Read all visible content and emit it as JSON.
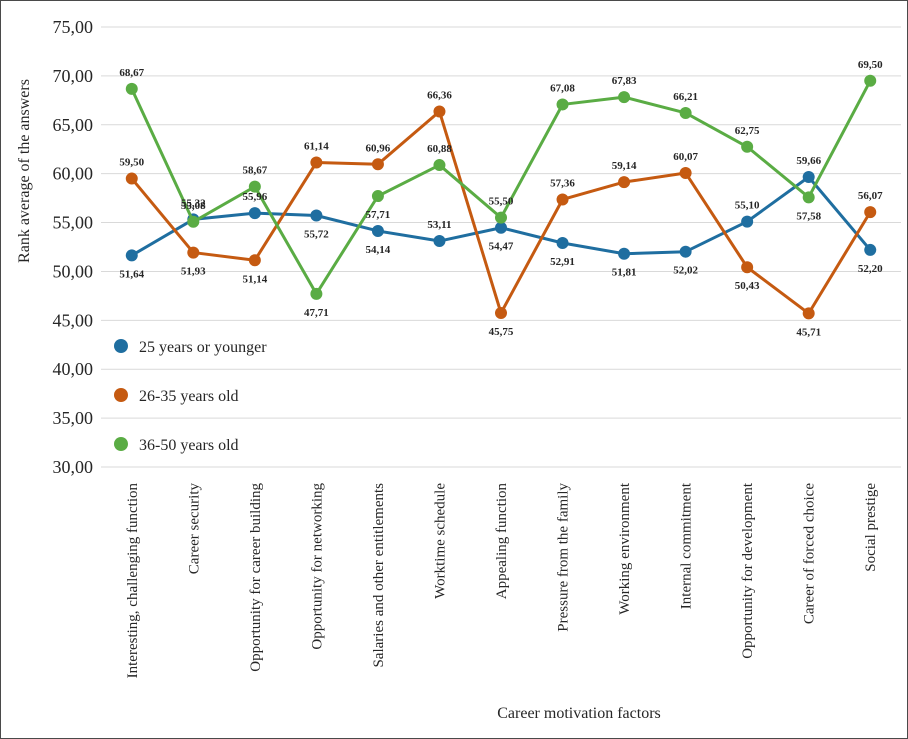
{
  "chart_data": {
    "type": "line",
    "title": "",
    "xlabel": "Career motivation factors",
    "ylabel": "Rank average of the answers",
    "ylim": [
      30,
      75
    ],
    "y_ticks": [
      "30,00",
      "35,00",
      "40,00",
      "45,00",
      "50,00",
      "55,00",
      "60,00",
      "65,00",
      "70,00",
      "75,00"
    ],
    "grid": true,
    "legend_position": "left",
    "categories": [
      "Interesting, challenging function",
      "Career security",
      "Opportunity for career building",
      "Opportunity for networking",
      "Salaries and other entitlements",
      "Worktime schedule",
      "Appealing function",
      "Pressure from the family",
      "Working environment",
      "Internal commitment",
      "Opportunity for development",
      "Career of forced choice",
      "Social prestige"
    ],
    "series": [
      {
        "name": "25 years or younger",
        "color": "#1f6ea0",
        "values": [
          51.64,
          55.32,
          55.96,
          55.72,
          54.14,
          53.11,
          54.47,
          52.91,
          51.81,
          52.02,
          55.1,
          59.66,
          52.2
        ],
        "labels": [
          "51,64",
          "55,32",
          "55,96",
          "55,72",
          "54,14",
          "53,11",
          "54,47",
          "52,91",
          "51,81",
          "52,02",
          "55,10",
          "59,66",
          "52,20"
        ]
      },
      {
        "name": "26-35 years old",
        "color": "#c55a11",
        "values": [
          59.5,
          51.93,
          51.14,
          61.14,
          60.96,
          66.36,
          45.75,
          57.36,
          59.14,
          60.07,
          50.43,
          45.71,
          56.07
        ],
        "labels": [
          "59,50",
          "51,93",
          "51,14",
          "61,14",
          "60,96",
          "66,36",
          "45,75",
          "57,36",
          "59,14",
          "60,07",
          "50,43",
          "45,71",
          "56,07"
        ]
      },
      {
        "name": "36-50 years old",
        "color": "#5aac44",
        "values": [
          68.67,
          55.08,
          58.67,
          47.71,
          57.71,
          60.88,
          55.5,
          67.08,
          67.83,
          66.21,
          62.75,
          57.58,
          69.5
        ],
        "labels": [
          "68,67",
          "55,08",
          "58,67",
          "47,71",
          "57,71",
          "60,88",
          "55,50",
          "67,08",
          "67,83",
          "66,21",
          "62,75",
          "57,58",
          "69,50"
        ]
      }
    ]
  }
}
